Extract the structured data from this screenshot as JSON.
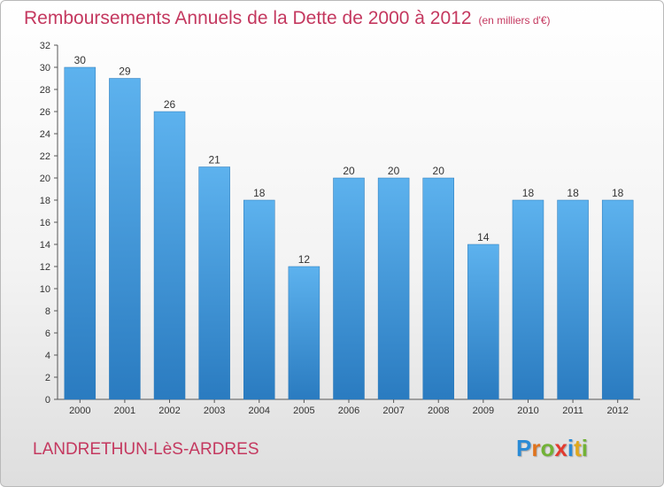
{
  "title": "Remboursements Annuels de la Dette de 2000 à 2012",
  "unit_note": "(en milliers d'€)",
  "commune": "LANDRETHUN-LèS-ARDRES",
  "brand": {
    "letters": [
      "P",
      "r",
      "o",
      "x",
      "i",
      "t",
      "i"
    ],
    "colors": [
      "#2a8bd6",
      "#e0731d",
      "#72b236",
      "#e23b2f",
      "#2a8bd6",
      "#e0a81d",
      "#72b236"
    ]
  },
  "colors": {
    "bar": "#3f97da",
    "title": "#c4385f"
  },
  "chart_data": {
    "type": "bar",
    "categories": [
      "2000",
      "2001",
      "2002",
      "2003",
      "2004",
      "2005",
      "2006",
      "2007",
      "2008",
      "2009",
      "2010",
      "2011",
      "2012"
    ],
    "values": [
      30,
      29,
      26,
      21,
      18,
      12,
      20,
      20,
      20,
      14,
      18,
      18,
      18
    ],
    "ylim": [
      0,
      32
    ],
    "yticks": [
      0,
      2,
      4,
      6,
      8,
      10,
      12,
      14,
      16,
      18,
      20,
      22,
      24,
      26,
      28,
      30,
      32
    ],
    "grid": false
  }
}
